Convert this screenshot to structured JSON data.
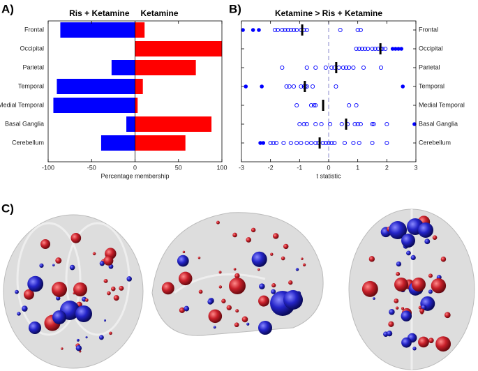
{
  "chart_data": [
    {
      "type": "bar",
      "panel_label": "A)",
      "orientation": "horizontal",
      "categories": [
        "Frontal",
        "Occipital",
        "Parietal",
        "Temporal",
        "Medial Temporal",
        "Basal Ganglia",
        "Cerebellum"
      ],
      "series": [
        {
          "name": "Ris + Ketamine",
          "color": "#0000ff",
          "values": [
            -86,
            0,
            -27,
            -90,
            -94,
            -10,
            -39
          ]
        },
        {
          "name": "Ketamine",
          "color": "#ff0000",
          "values": [
            11,
            100,
            70,
            9,
            3,
            88,
            58
          ]
        }
      ],
      "xlim": [
        -100,
        100
      ],
      "xticks": [
        -100,
        -50,
        0,
        50,
        100
      ],
      "xlabel": "Percentage membership"
    },
    {
      "type": "strip",
      "panel_label": "B)",
      "title": "Ketamine > Ris + Ketamine",
      "color": "#0000ff",
      "mean_color": "#000000",
      "xlim": [
        -3,
        3
      ],
      "xticks": [
        -3,
        -2,
        -1,
        0,
        1,
        2,
        3
      ],
      "vline": 0,
      "xlabel": "t statistic",
      "rows": [
        {
          "name": "Frontal",
          "open": [
            -1.85,
            -1.75,
            -1.6,
            -1.5,
            -1.4,
            -1.3,
            -1.2,
            -1.1,
            -0.95,
            -0.85,
            -0.75,
            0.4,
            1.0,
            1.1
          ],
          "filled": [
            -2.95,
            -2.6,
            -2.4
          ],
          "mean": -0.91
        },
        {
          "name": "Occipital",
          "open": [
            0.95,
            1.05,
            1.15,
            1.25,
            1.35,
            1.5,
            1.6,
            1.7,
            1.8,
            1.85,
            1.95
          ],
          "filled": [
            2.2,
            2.3,
            2.4,
            2.5
          ],
          "mean": 1.78
        },
        {
          "name": "Parietal",
          "open": [
            -1.6,
            -0.75,
            -0.45,
            -0.1,
            0.1,
            0.2,
            0.35,
            0.5,
            0.6,
            0.7,
            0.85,
            1.2,
            1.8
          ],
          "filled": [],
          "mean": 0.26
        },
        {
          "name": "Temporal",
          "open": [
            -1.45,
            -1.35,
            -1.2,
            -0.95,
            -0.85,
            -0.8,
            -0.75,
            -0.55,
            0.25
          ],
          "filled": [
            -2.85,
            -2.3,
            2.55
          ],
          "mean": -0.82
        },
        {
          "name": "Medial Temporal",
          "open": [
            -1.1,
            -0.6,
            -0.5,
            -0.45,
            0.7,
            0.95
          ],
          "filled": [],
          "mean": -0.19
        },
        {
          "name": "Basal Ganglia",
          "open": [
            -1.0,
            -0.85,
            -0.75,
            -0.45,
            -0.25,
            0.05,
            0.45,
            0.65,
            0.9,
            1.0,
            1.1,
            1.5,
            1.55,
            2.0
          ],
          "filled": [
            2.95
          ],
          "mean": 0.6
        },
        {
          "name": "Cerebellum",
          "open": [
            -2.0,
            -1.9,
            -1.8,
            -1.55,
            -1.3,
            -1.1,
            -0.95,
            -0.75,
            -0.6,
            -0.45,
            -0.35,
            -0.2,
            -0.1,
            0.0,
            0.1,
            0.2,
            0.55,
            0.85,
            1.05,
            1.5,
            2.0
          ],
          "filled": [
            -2.35,
            -2.25
          ],
          "mean": -0.31
        }
      ]
    }
  ],
  "panel_c": {
    "label": "C)"
  }
}
